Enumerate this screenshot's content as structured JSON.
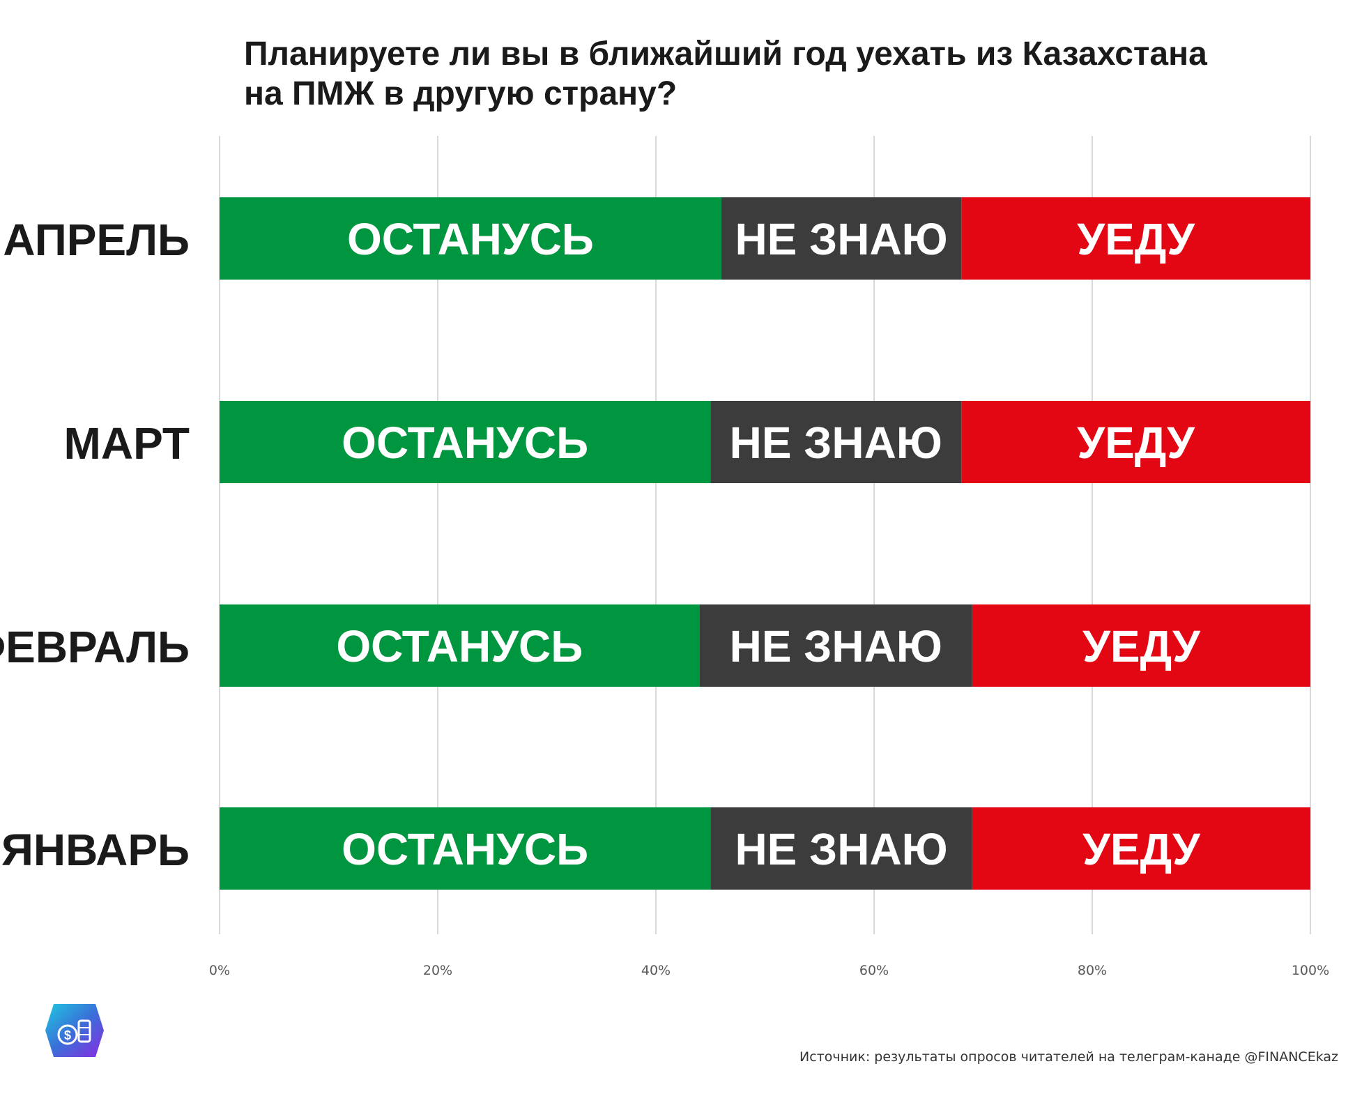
{
  "chart_data": {
    "type": "bar",
    "orientation": "horizontal",
    "stacked": "100%",
    "title": "Планируете ли вы в ближайший год уехать из Казахстана на ПМЖ в другую страну?",
    "title_lines": [
      "Планируете ли вы в ближайший год уехать из Казахстана",
      "на ПМЖ в другую страну?"
    ],
    "categories": [
      "АПРЕЛЬ",
      "МАРТ",
      "ФЕВРАЛЬ",
      "ЯНВАРЬ"
    ],
    "series": [
      {
        "name": "ОСТАНУСЬ",
        "color": "#00953f",
        "values": [
          46,
          45,
          44,
          45
        ]
      },
      {
        "name": "НЕ ЗНАЮ",
        "color": "#3c3c3c",
        "values": [
          22,
          23,
          25,
          24
        ]
      },
      {
        "name": "УЕДУ",
        "color": "#e30613",
        "values": [
          32,
          32,
          31,
          31
        ]
      }
    ],
    "x_ticks": [
      "0%",
      "20%",
      "40%",
      "60%",
      "80%",
      "100%"
    ],
    "xlim": [
      0,
      100
    ],
    "grid": true,
    "legend": "none",
    "source": "Источник: результаты опросов читателей на телеграм-канаде @FINANCEkaz"
  },
  "logo": {
    "name": "financekaz-logo-icon",
    "symbol": "$"
  }
}
